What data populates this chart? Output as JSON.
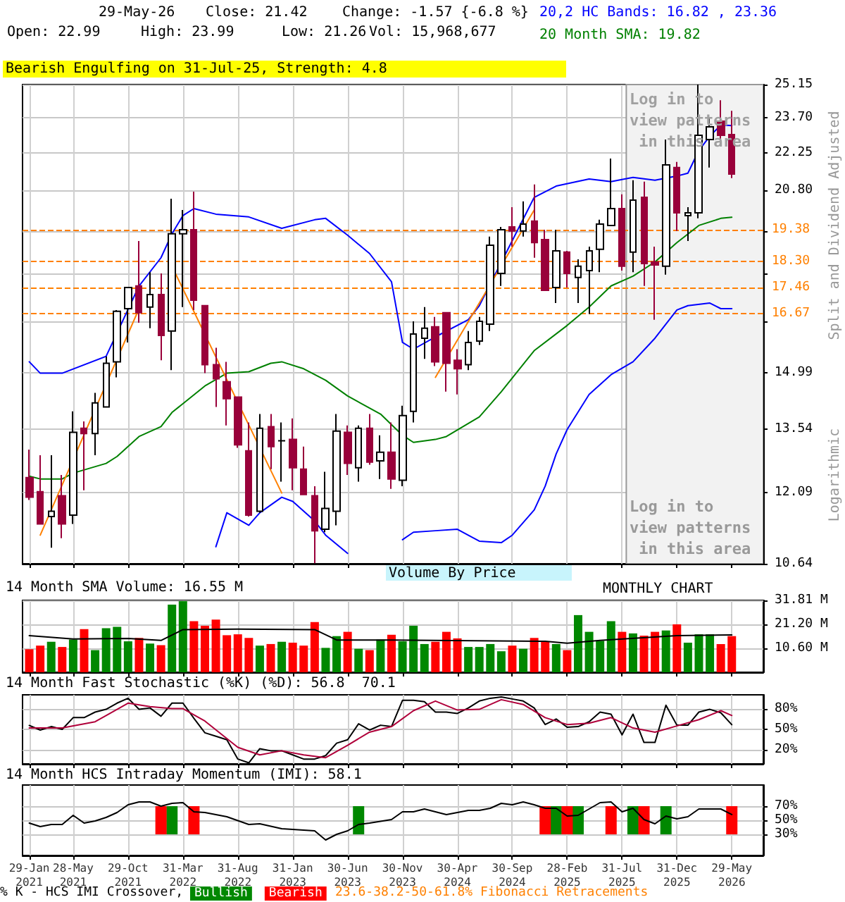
{
  "chart_data": [
    {
      "type": "candlestick",
      "log": "y",
      "grid": true,
      "tick_labels": "y",
      "legend": "top right",
      "annotations": [
        "29-May-26",
        "Close: 21.42",
        "Change: -1.57 {-6.8 %}",
        "Open: 22.99",
        "High: 23.99",
        "Low: 21.26",
        "Vol: 15,968,677",
        "Bearish Engulfing on 31-Jul-25, Strength: 4.8",
        "Log in to view patterns in this area",
        "Split and Dividend Adjusted",
        "Logarithmic",
        "Volume By Price"
      ],
      "xlim": [
        "2020-12-13",
        "2026-07-28"
      ],
      "xticks": [
        {
          "value": "2021-01",
          "label": null
        },
        {
          "value": "2021-05",
          "label": null
        },
        {
          "value": "2021-10",
          "label": null
        },
        {
          "value": "2022-03",
          "label": null
        },
        {
          "value": "2022-08",
          "label": null
        },
        {
          "value": "2023-01",
          "label": null
        },
        {
          "value": "2023-06",
          "label": null
        },
        {
          "value": "2023-11",
          "label": null
        },
        {
          "value": "2024-04",
          "label": null
        },
        {
          "value": "2024-09",
          "label": null
        },
        {
          "value": "2025-02",
          "label": null
        },
        {
          "value": "2025-07",
          "label": null
        },
        {
          "value": "2025-12",
          "label": null
        },
        {
          "value": "2026-05",
          "label": null
        }
      ],
      "ylim": [
        10.64,
        25.15
      ],
      "yticks": [
        10.64,
        12.09,
        13.54,
        14.99,
        {
          "value": 16.44,
          "label": null
        },
        {
          "value": 17.89,
          "label": null
        },
        {
          "value": 19.34,
          "label": null
        },
        {
          "value": 20.8,
          "label": "20.80"
        },
        22.25,
        {
          "value": 23.7,
          "label": "23.70"
        },
        25.15
      ],
      "x": [
        "2021-01",
        "2021-02",
        "2021-03",
        "2021-04",
        "2021-05",
        "2021-06",
        "2021-07",
        "2021-08",
        "2021-09",
        "2021-10",
        "2021-11",
        "2021-12",
        "2022-01",
        "2022-02",
        "2022-03",
        "2022-04",
        "2022-05",
        "2022-06",
        "2022-07",
        "2022-08",
        "2022-09",
        "2022-10",
        "2022-11",
        "2022-12",
        "2023-01",
        "2023-02",
        "2023-03",
        "2023-04",
        "2023-05",
        "2023-06",
        "2023-07",
        "2023-08",
        "2023-09",
        "2023-10",
        "2023-11",
        "2023-12",
        "2024-01",
        "2024-02",
        "2024-03",
        "2024-04",
        "2024-05",
        "2024-06",
        "2024-07",
        "2024-08",
        "2024-09",
        "2024-10",
        "2024-11",
        "2024-12",
        "2025-01",
        "2025-02",
        "2025-03",
        "2025-04",
        "2025-05",
        "2025-06",
        "2025-07",
        "2025-08",
        "2025-09",
        "2025-10",
        "2025-11",
        "2025-12",
        "2026-01",
        "2026-02",
        "2026-03",
        "2026-04",
        "2026-05"
      ],
      "ohlc": [
        [
          12.42,
          13.06,
          11.93,
          11.99
        ],
        [
          12.11,
          12.93,
          11.43,
          11.43
        ],
        [
          11.58,
          12.93,
          10.95,
          11.69
        ],
        [
          12.02,
          12.48,
          11.14,
          11.43
        ],
        [
          11.61,
          13.99,
          11.43,
          13.47
        ],
        [
          13.57,
          13.74,
          12.14,
          13.44
        ],
        [
          13.44,
          14.46,
          12.93,
          14.2
        ],
        [
          14.1,
          15.44,
          14.1,
          15.25
        ],
        [
          15.29,
          16.78,
          14.87,
          16.74
        ],
        [
          16.82,
          17.47,
          15.83,
          17.47
        ],
        [
          17.52,
          18.99,
          16.4,
          16.7
        ],
        [
          16.87,
          17.96,
          16.24,
          17.25
        ],
        [
          17.25,
          17.92,
          15.33,
          16.03
        ],
        [
          16.16,
          20.49,
          15.06,
          19.24
        ],
        [
          19.24,
          20.08,
          16.87,
          19.38
        ],
        [
          19.38,
          20.75,
          16.78,
          17.08
        ],
        [
          16.91,
          16.91,
          14.98,
          15.21
        ],
        [
          15.21,
          15.68,
          14.1,
          14.83
        ],
        [
          14.75,
          15.29,
          13.64,
          14.31
        ],
        [
          14.35,
          14.35,
          13.1,
          13.17
        ],
        [
          13.03,
          13.71,
          11.58,
          11.61
        ],
        [
          11.69,
          13.92,
          11.66,
          13.57
        ],
        [
          13.61,
          13.92,
          12.61,
          13.13
        ],
        [
          13.27,
          13.71,
          12.33,
          13.27
        ],
        [
          13.3,
          13.81,
          12.14,
          12.64
        ],
        [
          12.61,
          13.13,
          12.05,
          12.05
        ],
        [
          12.02,
          12.23,
          10.65,
          11.29
        ],
        [
          11.32,
          12.55,
          11.26,
          11.75
        ],
        [
          11.69,
          13.92,
          11.4,
          13.5
        ],
        [
          13.47,
          13.64,
          12.48,
          12.74
        ],
        [
          12.64,
          13.64,
          12.33,
          13.57
        ],
        [
          13.57,
          13.92,
          12.71,
          12.77
        ],
        [
          12.8,
          13.4,
          12.39,
          13.0
        ],
        [
          13.0,
          13.71,
          12.17,
          12.39
        ],
        [
          12.36,
          14.13,
          12.23,
          13.88
        ],
        [
          13.99,
          16.44,
          13.71,
          16.07
        ],
        [
          15.95,
          16.87,
          15.37,
          16.24
        ],
        [
          16.28,
          16.57,
          15.17,
          15.29
        ],
        [
          16.7,
          16.7,
          14.49,
          15.25
        ],
        [
          15.33,
          15.64,
          14.42,
          15.1
        ],
        [
          15.21,
          16.16,
          15.06,
          15.83
        ],
        [
          15.87,
          16.57,
          15.76,
          16.44
        ],
        [
          16.36,
          19.14,
          16.16,
          18.85
        ],
        [
          17.92,
          19.48,
          17.52,
          19.38
        ],
        [
          19.48,
          20.18,
          18.8,
          19.34
        ],
        [
          19.34,
          20.39,
          19.14,
          19.58
        ],
        [
          19.68,
          21.02,
          18.43,
          18.94
        ],
        [
          19.04,
          19.38,
          17.38,
          17.38
        ],
        [
          17.47,
          19.38,
          16.99,
          18.66
        ],
        [
          18.62,
          18.66,
          17.47,
          17.92
        ],
        [
          17.79,
          18.38,
          16.99,
          18.15
        ],
        [
          18.01,
          18.8,
          16.66,
          18.66
        ],
        [
          18.71,
          19.73,
          17.96,
          19.58
        ],
        [
          19.53,
          22.02,
          19.53,
          20.13
        ],
        [
          20.13,
          20.65,
          18.01,
          18.15
        ],
        [
          18.62,
          21.18,
          17.96,
          20.44
        ],
        [
          20.54,
          21.13,
          17.52,
          18.24
        ],
        [
          18.29,
          18.8,
          16.49,
          18.19
        ],
        [
          18.15,
          22.79,
          17.88,
          21.77
        ],
        [
          21.67,
          21.89,
          19.34,
          19.98
        ],
        [
          19.88,
          20.18,
          18.99,
          19.98
        ],
        [
          19.98,
          25.15,
          19.78,
          22.96
        ],
        [
          22.79,
          23.72,
          21.67,
          23.31
        ],
        [
          23.55,
          24.45,
          22.73,
          22.96
        ],
        [
          22.99,
          23.99,
          21.26,
          21.42
        ]
      ],
      "series": [
        {
          "name": "20,2 HC Bands: 16.82 , 23.36",
          "type": "line",
          "color": "#0000ff",
          "x": [
            "2021-01",
            "2021-02",
            "2021-04",
            "2021-08",
            "2021-11",
            "2022-01",
            "2022-02",
            "2022-03",
            "2022-04",
            "2022-06",
            "2022-09",
            "2022-12",
            "2023-03",
            "2023-04",
            "2023-06",
            "2023-08",
            "2023-10",
            "2023-11",
            "2023-12",
            "2024-02",
            "2024-05",
            "2024-06",
            "2024-11",
            "2025-01",
            "2025-04",
            "2025-06",
            "2025-08",
            "2025-10",
            "2025-12",
            "2026-01",
            "2026-02",
            "2026-03",
            "2026-04",
            "2026-05"
          ],
          "values": [
            15.29,
            14.98,
            14.98,
            15.44,
            17.52,
            18.43,
            19.24,
            19.88,
            20.13,
            19.93,
            19.83,
            19.43,
            19.73,
            19.78,
            19.19,
            18.57,
            17.65,
            15.83,
            15.64,
            15.99,
            16.49,
            16.91,
            20.54,
            20.96,
            21.23,
            21.13,
            21.29,
            21.18,
            21.34,
            21.45,
            22.35,
            22.92,
            23.39,
            23.36
          ]
        },
        {
          "type": "line",
          "color": "#0000ff",
          "x": [
            "2022-06",
            "2022-07",
            "2022-09",
            "2022-10",
            "2022-12",
            "2023-01",
            "2023-03",
            "2023-04",
            "2023-06",
            "2023-08",
            "2023-11",
            "2023-12",
            "2024-02",
            "2024-04",
            "2024-06",
            "2024-08",
            "2024-09",
            "2024-11",
            "2024-12",
            "2025-01",
            "2025-02",
            "2025-04",
            "2025-06",
            "2025-08",
            "2025-10",
            "2025-12",
            "2026-01",
            "2026-03",
            "2026-04",
            "2026-05"
          ],
          "values": [
            10.97,
            11.66,
            11.4,
            11.66,
            11.99,
            11.9,
            11.49,
            11.2,
            10.84,
            null,
            11.11,
            11.26,
            11.29,
            11.32,
            11.08,
            11.05,
            11.2,
            11.72,
            12.23,
            12.96,
            13.54,
            14.42,
            14.94,
            15.29,
            15.95,
            16.78,
            16.91,
            16.99,
            16.82,
            16.82
          ]
        },
        {
          "name": "20 Month SMA: 19.82",
          "type": "line",
          "color": "#008000",
          "x": [
            "2021-01",
            "2021-02",
            "2021-04",
            "2021-05",
            "2021-08",
            "2021-09",
            "2021-11",
            "2022-01",
            "2022-02",
            "2022-05",
            "2022-07",
            "2022-09",
            "2022-11",
            "2022-12",
            "2023-02",
            "2023-04",
            "2023-06",
            "2023-09",
            "2023-11",
            "2023-12",
            "2024-02",
            "2024-03",
            "2024-06",
            "2024-08",
            "2024-11",
            "2025-02",
            "2025-04",
            "2025-06",
            "2025-08",
            "2025-10",
            "2025-12",
            "2026-02",
            "2026-04",
            "2026-05"
          ],
          "values": [
            12.45,
            12.39,
            12.39,
            12.52,
            12.74,
            12.9,
            13.37,
            13.61,
            13.96,
            14.64,
            14.98,
            15.02,
            15.25,
            15.29,
            15.1,
            14.79,
            14.38,
            13.92,
            13.4,
            13.23,
            13.3,
            13.37,
            13.85,
            14.49,
            15.6,
            16.32,
            16.87,
            17.52,
            17.83,
            18.29,
            18.94,
            19.53,
            19.78,
            19.82
          ]
        },
        {
          "type": "line",
          "color": "#ff8000",
          "x": [
            "2021-02",
            "2021-11"
          ],
          "values": [
            11.2,
            16.82
          ]
        },
        {
          "type": "line",
          "color": "#ff8000",
          "x": [
            "2022-02",
            "2022-12"
          ],
          "values": [
            18.15,
            12.08
          ]
        },
        {
          "type": "line",
          "color": "#ff8000",
          "x": [
            "2024-02",
            "2024-11"
          ],
          "values": [
            14.87,
            20.08
          ]
        }
      ],
      "ref_lines": [
        {
          "axis": "y",
          "value": 19.38,
          "label": "19.38",
          "color": "#ff8000",
          "line_style": "dashed"
        },
        {
          "axis": "y",
          "value": 18.3,
          "label": "18.30",
          "color": "#ff8000",
          "line_style": "dashed"
        },
        {
          "axis": "y",
          "value": 17.46,
          "label": "17.46",
          "color": "#ff8000",
          "line_style": "dashed"
        },
        {
          "axis": "y",
          "value": 16.67,
          "label": "16.67",
          "color": "#ff8000",
          "line_style": "dashed"
        }
      ],
      "bands": [
        {
          "axis": "x",
          "from": "2025-07-13",
          "to": "2026-07-28",
          "label": "Log in to view patterns in this area",
          "color": "#f2f2f2"
        }
      ]
    },
    {
      "type": "bar",
      "title": "14 Month SMA Volume: 16.55 M",
      "grid": true,
      "tick_labels": "y",
      "annotations": [
        "MONTHLY CHART"
      ],
      "xlim": [
        "2020-12-13",
        "2026-07-28"
      ],
      "xticks": [
        {
          "value": "2021-01",
          "label": null
        },
        {
          "value": "2021-05",
          "label": null
        },
        {
          "value": "2021-10",
          "label": null
        },
        {
          "value": "2022-03",
          "label": null
        },
        {
          "value": "2022-08",
          "label": null
        },
        {
          "value": "2023-01",
          "label": null
        },
        {
          "value": "2023-06",
          "label": null
        },
        {
          "value": "2023-11",
          "label": null
        },
        {
          "value": "2024-04",
          "label": null
        },
        {
          "value": "2024-09",
          "label": null
        },
        {
          "value": "2025-02",
          "label": null
        },
        {
          "value": "2025-07",
          "label": null
        },
        {
          "value": "2025-12",
          "label": null
        },
        {
          "value": "2026-05",
          "label": null
        }
      ],
      "ylim": [
        0,
        31.81
      ],
      "yticks": [
        {
          "value": 10.6,
          "label": "10.60 M"
        },
        {
          "value": 21.2,
          "label": "21.20 M"
        },
        {
          "value": 31.81,
          "label": "31.81 M"
        }
      ],
      "x": [
        "2021-01",
        "2021-02",
        "2021-03",
        "2021-04",
        "2021-05",
        "2021-06",
        "2021-07",
        "2021-08",
        "2021-09",
        "2021-10",
        "2021-11",
        "2021-12",
        "2022-01",
        "2022-02",
        "2022-03",
        "2022-04",
        "2022-05",
        "2022-06",
        "2022-07",
        "2022-08",
        "2022-09",
        "2022-10",
        "2022-11",
        "2022-12",
        "2023-01",
        "2023-02",
        "2023-03",
        "2023-04",
        "2023-05",
        "2023-06",
        "2023-07",
        "2023-08",
        "2023-09",
        "2023-10",
        "2023-11",
        "2023-12",
        "2024-01",
        "2024-02",
        "2024-03",
        "2024-04",
        "2024-05",
        "2024-06",
        "2024-07",
        "2024-08",
        "2024-09",
        "2024-10",
        "2024-11",
        "2024-12",
        "2025-01",
        "2025-02",
        "2025-03",
        "2025-04",
        "2025-05",
        "2025-06",
        "2025-07",
        "2025-08",
        "2025-09",
        "2025-10",
        "2025-11",
        "2025-12",
        "2026-01",
        "2026-02",
        "2026-03",
        "2026-04",
        "2026-05"
      ],
      "series": [
        {
          "type": "bar",
          "values": [
            10.2,
            11.8,
            13.5,
            11.2,
            14.5,
            19.1,
            9.8,
            19.5,
            20.1,
            13.7,
            15.2,
            12.7,
            12.0,
            29.9,
            31.5,
            22.6,
            20.6,
            23.3,
            16.4,
            16.8,
            15.2,
            11.8,
            12.5,
            13.5,
            13.1,
            11.8,
            22.2,
            10.8,
            16.0,
            17.9,
            10.4,
            9.8,
            14.5,
            16.6,
            13.7,
            20.6,
            12.5,
            13.5,
            17.9,
            15.0,
            11.2,
            11.2,
            12.5,
            9.3,
            11.8,
            10.4,
            15.2,
            13.5,
            12.5,
            9.8,
            25.3,
            17.9,
            13.9,
            22.6,
            17.9,
            17.2,
            16.2,
            17.9,
            18.5,
            21.2,
            13.1,
            16.8,
            16.8,
            12.5,
            16.0
          ],
          "colors": [
            "#ff0000",
            "#ff0000",
            "#008800",
            "#ff0000",
            "#008800",
            "#ff0000",
            "#008800",
            "#008800",
            "#008800",
            "#008800",
            "#ff0000",
            "#008800",
            "#ff0000",
            "#008800",
            "#008800",
            "#ff0000",
            "#ff0000",
            "#ff0000",
            "#ff0000",
            "#ff0000",
            "#ff0000",
            "#008800",
            "#ff0000",
            "#008800",
            "#ff0000",
            "#ff0000",
            "#ff0000",
            "#008800",
            "#008800",
            "#ff0000",
            "#008800",
            "#ff0000",
            "#008800",
            "#ff0000",
            "#008800",
            "#008800",
            "#008800",
            "#ff0000",
            "#ff0000",
            "#ff0000",
            "#008800",
            "#008800",
            "#008800",
            "#008800",
            "#ff0000",
            "#008800",
            "#ff0000",
            "#ff0000",
            "#008800",
            "#ff0000",
            "#008800",
            "#008800",
            "#008800",
            "#008800",
            "#ff0000",
            "#008800",
            "#ff0000",
            "#ff0000",
            "#008800",
            "#ff0000",
            "#008800",
            "#008800",
            "#008800",
            "#ff0000",
            "#ff0000"
          ]
        },
        {
          "type": "line",
          "color": "#000000",
          "x": [
            "2021-01",
            "2021-05",
            "2021-10",
            "2022-01",
            "2022-03",
            "2022-08",
            "2023-03",
            "2023-05",
            "2023-10",
            "2024-12",
            "2025-02",
            "2025-05",
            "2025-12",
            "2026-05"
          ],
          "values": [
            16.2,
            14.7,
            15.0,
            14.1,
            18.9,
            19.1,
            18.9,
            14.3,
            14.3,
            13.7,
            12.9,
            14.1,
            16.2,
            16.55
          ]
        }
      ]
    },
    {
      "type": "line",
      "title": "14 Month Fast Stochastic (%K) (%D): 56.8  70.1",
      "grid": true,
      "tick_labels": "y",
      "xlim": [
        "2020-12-13",
        "2026-07-28"
      ],
      "xticks": [
        {
          "value": "2021-01",
          "label": null
        },
        {
          "value": "2021-05",
          "label": null
        },
        {
          "value": "2021-10",
          "label": null
        },
        {
          "value": "2022-03",
          "label": null
        },
        {
          "value": "2022-08",
          "label": null
        },
        {
          "value": "2023-01",
          "label": null
        },
        {
          "value": "2023-06",
          "label": null
        },
        {
          "value": "2023-11",
          "label": null
        },
        {
          "value": "2024-04",
          "label": null
        },
        {
          "value": "2024-09",
          "label": null
        },
        {
          "value": "2025-02",
          "label": null
        },
        {
          "value": "2025-07",
          "label": null
        },
        {
          "value": "2025-12",
          "label": null
        },
        {
          "value": "2026-05",
          "label": null
        }
      ],
      "ylim": [
        0,
        100
      ],
      "yticks": [
        {
          "value": 20,
          "label": "20%"
        },
        {
          "value": 50,
          "label": "50%"
        },
        {
          "value": 80,
          "label": "80%"
        }
      ],
      "x": [
        "2021-01",
        "2021-02",
        "2021-03",
        "2021-04",
        "2021-05",
        "2021-06",
        "2021-07",
        "2021-08",
        "2021-09",
        "2021-10",
        "2021-11",
        "2021-12",
        "2022-01",
        "2022-02",
        "2022-03",
        "2022-04",
        "2022-05",
        "2022-06",
        "2022-07",
        "2022-08",
        "2022-09",
        "2022-10",
        "2022-11",
        "2022-12",
        "2023-01",
        "2023-02",
        "2023-03",
        "2023-04",
        "2023-05",
        "2023-06",
        "2023-07",
        "2023-08",
        "2023-09",
        "2023-10",
        "2023-11",
        "2023-12",
        "2024-01",
        "2024-02",
        "2024-03",
        "2024-04",
        "2024-05",
        "2024-06",
        "2024-07",
        "2024-08",
        "2024-09",
        "2024-10",
        "2024-11",
        "2024-12",
        "2025-01",
        "2025-02",
        "2025-03",
        "2025-04",
        "2025-05",
        "2025-06",
        "2025-07",
        "2025-08",
        "2025-09",
        "2025-10",
        "2025-11",
        "2025-12",
        "2026-01",
        "2026-02",
        "2026-03",
        "2026-04",
        "2026-05"
      ],
      "series": [
        {
          "color": "#000000",
          "values": [
            55.7,
            49,
            54,
            50,
            67,
            67,
            75,
            79,
            88,
            95,
            79,
            81,
            69,
            88,
            88,
            66,
            45,
            40,
            35,
            7,
            1.5,
            22,
            19,
            19,
            13,
            7,
            7,
            12,
            30,
            35,
            58,
            49,
            56,
            54,
            92,
            92,
            90,
            75,
            75,
            73,
            81,
            91,
            95,
            97,
            94,
            91,
            81,
            57,
            65,
            53,
            54,
            61,
            75,
            72,
            42,
            72,
            31,
            31,
            85,
            56,
            56,
            75,
            79,
            74,
            56.8
          ]
        },
        {
          "color": "#b0003a",
          "x": [
            "2021-01",
            "2021-04",
            "2021-07",
            "2021-10",
            "2021-12",
            "2022-02",
            "2022-03",
            "2022-05",
            "2022-08",
            "2022-10",
            "2022-12",
            "2023-02",
            "2023-04",
            "2023-06",
            "2023-08",
            "2023-10",
            "2023-12",
            "2024-02",
            "2024-04",
            "2024-06",
            "2024-08",
            "2024-10",
            "2024-12",
            "2025-02",
            "2025-04",
            "2025-06",
            "2025-08",
            "2025-10",
            "2025-12",
            "2026-02",
            "2026-04",
            "2026-05"
          ],
          "values": [
            52,
            52,
            61,
            88,
            83,
            80,
            80,
            62,
            24,
            13,
            19,
            13,
            9,
            27,
            46,
            54,
            77,
            91,
            78,
            79,
            93,
            86,
            67,
            57,
            59,
            67,
            52,
            46,
            55,
            64,
            77,
            70.1
          ]
        }
      ]
    },
    {
      "type": "line",
      "title": "14 Month HCS Intraday Momentum (IMI): 58.1",
      "grid": true,
      "legend": "bottom",
      "annotations": [
        "% K - HCS IMI Crossover,",
        "23.6-38.2-50-61.8% Fibonacci Retracements"
      ],
      "xlim": [
        "2020-12-13",
        "2026-07-28"
      ],
      "xticks": [
        {
          "value": "2021-01",
          "label": "29-Jan 2021"
        },
        {
          "value": "2021-05",
          "label": "28-May 2021"
        },
        {
          "value": "2021-10",
          "label": "29-Oct 2021"
        },
        {
          "value": "2022-03",
          "label": "31-Mar 2022"
        },
        {
          "value": "2022-08",
          "label": "31-Aug 2022"
        },
        {
          "value": "2023-01",
          "label": "31-Jan 2023"
        },
        {
          "value": "2023-06",
          "label": "30-Jun 2023"
        },
        {
          "value": "2023-11",
          "label": "30-Nov 2023"
        },
        {
          "value": "2024-04",
          "label": "30-Apr 2024"
        },
        {
          "value": "2024-09",
          "label": "30-Sep 2024"
        },
        {
          "value": "2025-02",
          "label": "28-Feb 2025"
        },
        {
          "value": "2025-07",
          "label": "31-Jul 2025"
        },
        {
          "value": "2025-12",
          "label": "31-Dec 2025"
        },
        {
          "value": "2026-05",
          "label": "29-May 2026"
        }
      ],
      "ylim": [
        0,
        100
      ],
      "yticks": [
        {
          "value": 30,
          "label": "30%"
        },
        {
          "value": 50,
          "label": "50%"
        },
        {
          "value": 70,
          "label": "70%"
        }
      ],
      "series": [
        {
          "type": "line",
          "color": "#000000",
          "x": [
            "2021-01",
            "2021-02",
            "2021-03",
            "2021-04",
            "2021-05",
            "2021-06",
            "2021-07",
            "2021-08",
            "2021-09",
            "2021-10",
            "2021-11",
            "2021-12",
            "2022-01",
            "2022-02",
            "2022-03",
            "2022-04",
            "2022-05",
            "2022-07",
            "2022-09",
            "2022-10",
            "2022-12",
            "2023-02",
            "2023-03",
            "2023-04",
            "2023-05",
            "2023-06",
            "2023-07",
            "2023-08",
            "2023-10",
            "2023-11",
            "2023-12",
            "2024-01",
            "2024-03",
            "2024-05",
            "2024-06",
            "2024-07",
            "2024-08",
            "2024-09",
            "2024-10",
            "2024-11",
            "2024-12",
            "2025-01",
            "2025-02",
            "2025-03",
            "2025-04",
            "2025-05",
            "2025-06",
            "2025-07",
            "2025-08",
            "2025-09",
            "2025-10",
            "2025-11",
            "2025-12",
            "2026-01",
            "2026-02",
            "2026-04",
            "2026-05"
          ],
          "values": [
            46,
            41,
            44,
            44,
            57,
            46,
            49,
            54,
            61,
            72,
            76,
            76,
            70,
            74,
            75,
            62,
            61,
            55,
            44,
            45,
            38,
            36,
            35,
            22,
            30,
            35,
            44,
            46,
            51,
            62,
            62,
            66,
            58,
            64,
            64,
            67,
            74,
            72,
            76,
            72,
            67,
            67,
            56,
            57,
            66,
            75,
            76,
            62,
            67,
            51,
            45,
            56,
            52,
            55,
            66,
            66,
            58.1
          ]
        },
        {
          "name": "Bullish",
          "type": "bar",
          "color": "#008800",
          "x": [
            "2022-02",
            "2023-07",
            "2025-01",
            "2025-03",
            "2025-08",
            "2025-11"
          ],
          "base": [
            30,
            30,
            30,
            30,
            30,
            30
          ],
          "values": [
            40,
            40,
            40,
            40,
            40,
            40
          ]
        },
        {
          "name": "Bearish",
          "type": "bar",
          "color": "#ff0000",
          "x": [
            "2022-01",
            "2022-04",
            "2024-12",
            "2025-02",
            "2025-06",
            "2025-09",
            "2026-05"
          ],
          "base": [
            30,
            30,
            30,
            30,
            30,
            30,
            30
          ],
          "values": [
            40,
            40,
            40,
            40,
            40,
            40,
            40
          ]
        }
      ]
    }
  ]
}
